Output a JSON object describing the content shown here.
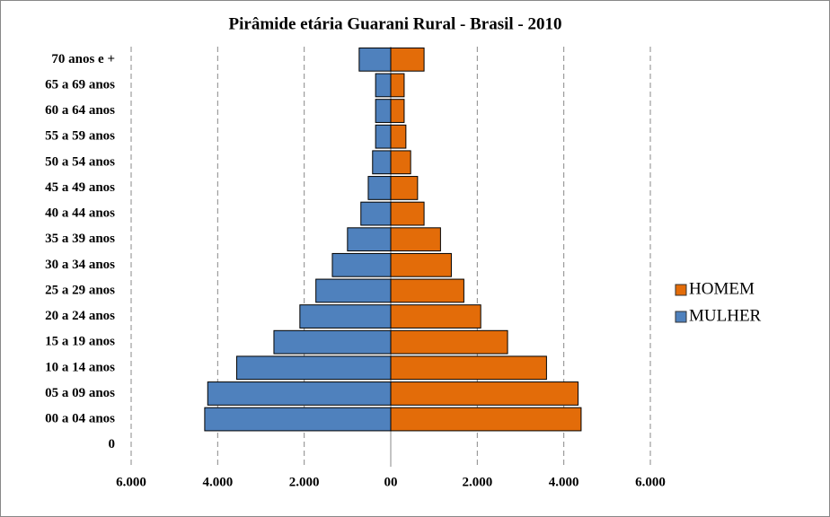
{
  "chart_data": {
    "type": "pyramid",
    "title": "Pirâmide  etária Guarani  Rural - Brasil - 2010",
    "categories": [
      "0",
      "00 a 04 anos",
      "05 a 09 anos",
      "10 a 14 anos",
      "15 a 19 anos",
      "20 a 24 anos",
      "25 a 29 anos",
      "30 a 34 anos",
      "35 a 39 anos",
      "40 a 44 anos",
      "45 a 49 anos",
      "50 a 54 anos",
      "55 a 59 anos",
      "60 a 64 anos",
      "65 a 69 anos",
      "70 anos e +"
    ],
    "series": [
      {
        "name": "HOMEM",
        "color": "#e36c09",
        "values": [
          null,
          4400,
          4330,
          3600,
          2700,
          2080,
          1690,
          1400,
          1150,
          770,
          620,
          460,
          350,
          310,
          310,
          770
        ]
      },
      {
        "name": "MULHER",
        "color": "#4f81bd",
        "values": [
          null,
          -4300,
          -4230,
          -3560,
          -2700,
          -2100,
          -1730,
          -1350,
          -1000,
          -690,
          -520,
          -420,
          -350,
          -350,
          -350,
          -730
        ]
      }
    ],
    "xlim": [
      -6000,
      6000
    ],
    "xticks": [
      {
        "value": -6000,
        "label": "6.000"
      },
      {
        "value": -4000,
        "label": "4.000"
      },
      {
        "value": -2000,
        "label": "2.000"
      },
      {
        "value": 0,
        "label": "00"
      },
      {
        "value": 2000,
        "label": "2.000"
      },
      {
        "value": 4000,
        "label": "4.000"
      },
      {
        "value": 6000,
        "label": "6.000"
      }
    ],
    "grid": true,
    "legend": "right"
  }
}
